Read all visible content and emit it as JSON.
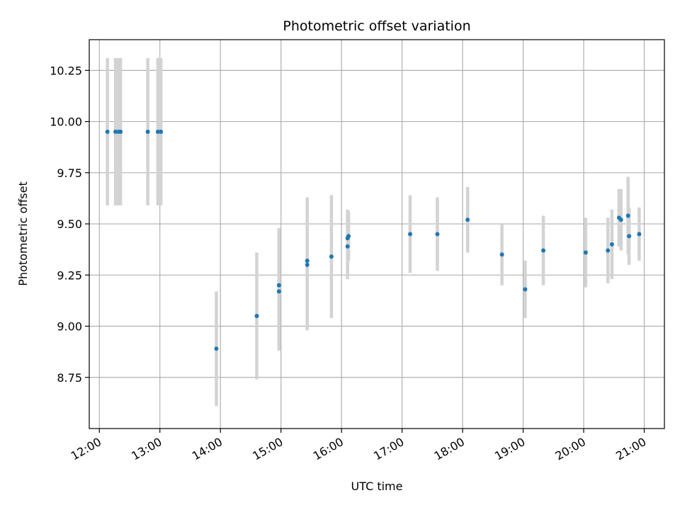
{
  "chart_data": {
    "type": "scatter",
    "title": "Photometric offset variation",
    "xlabel": "UTC time",
    "ylabel": "Photometric offset",
    "x_unit": "hours UTC",
    "xlim": [
      "11:50",
      "21:20"
    ],
    "ylim": [
      8.5,
      10.4
    ],
    "xticks": [
      "12:00",
      "13:00",
      "14:00",
      "15:00",
      "16:00",
      "17:00",
      "18:00",
      "19:00",
      "20:00",
      "21:00"
    ],
    "yticks": [
      "8.75",
      "9.00",
      "9.25",
      "9.50",
      "9.75",
      "10.00",
      "10.25"
    ],
    "grid": true,
    "point_color": "#1f77b4",
    "errorbar_color": "#d3d3d3",
    "points": [
      {
        "x": "12:08",
        "y": 9.95,
        "err": 0.36
      },
      {
        "x": "12:16",
        "y": 9.95,
        "err": 0.36
      },
      {
        "x": "12:19",
        "y": 9.95,
        "err": 0.36
      },
      {
        "x": "12:21",
        "y": 9.95,
        "err": 0.36
      },
      {
        "x": "12:48",
        "y": 9.95,
        "err": 0.36
      },
      {
        "x": "12:58",
        "y": 9.95,
        "err": 0.36
      },
      {
        "x": "13:01",
        "y": 9.95,
        "err": 0.36
      },
      {
        "x": "13:56",
        "y": 8.89,
        "err": 0.28
      },
      {
        "x": "14:36",
        "y": 9.05,
        "err": 0.31
      },
      {
        "x": "14:58",
        "y": 9.2,
        "err": 0.28
      },
      {
        "x": "14:58",
        "y": 9.17,
        "err": 0.29
      },
      {
        "x": "15:26",
        "y": 9.32,
        "err": 0.31
      },
      {
        "x": "15:26",
        "y": 9.3,
        "err": 0.32
      },
      {
        "x": "15:50",
        "y": 9.34,
        "err": 0.3
      },
      {
        "x": "16:06",
        "y": 9.43,
        "err": 0.14
      },
      {
        "x": "16:06",
        "y": 9.39,
        "err": 0.16
      },
      {
        "x": "16:07",
        "y": 9.44,
        "err": 0.12
      },
      {
        "x": "17:08",
        "y": 9.45,
        "err": 0.19
      },
      {
        "x": "17:35",
        "y": 9.45,
        "err": 0.18
      },
      {
        "x": "18:05",
        "y": 9.52,
        "err": 0.16
      },
      {
        "x": "18:39",
        "y": 9.35,
        "err": 0.15
      },
      {
        "x": "19:02",
        "y": 9.18,
        "err": 0.14
      },
      {
        "x": "19:20",
        "y": 9.37,
        "err": 0.17
      },
      {
        "x": "20:02",
        "y": 9.36,
        "err": 0.17
      },
      {
        "x": "20:24",
        "y": 9.37,
        "err": 0.16
      },
      {
        "x": "20:28",
        "y": 9.4,
        "err": 0.17
      },
      {
        "x": "20:35",
        "y": 9.53,
        "err": 0.14
      },
      {
        "x": "20:37",
        "y": 9.52,
        "err": 0.15
      },
      {
        "x": "20:44",
        "y": 9.54,
        "err": 0.19
      },
      {
        "x": "20:45",
        "y": 9.44,
        "err": 0.14
      },
      {
        "x": "20:55",
        "y": 9.45,
        "err": 0.13
      }
    ]
  }
}
